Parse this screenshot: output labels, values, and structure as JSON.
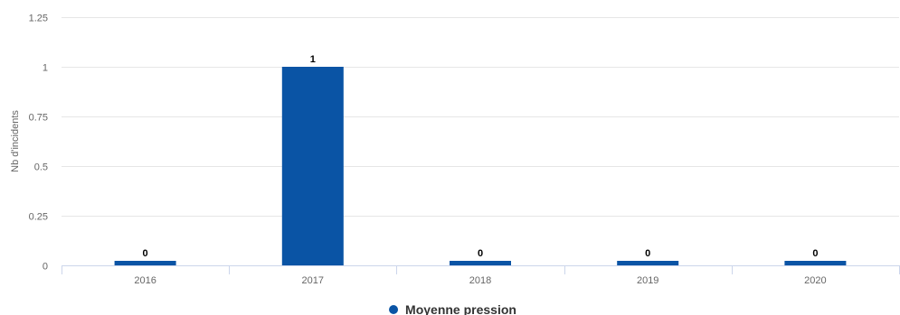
{
  "chart_data": {
    "type": "bar",
    "categories": [
      "2016",
      "2017",
      "2018",
      "2019",
      "2020"
    ],
    "series": [
      {
        "name": "Moyenne pression",
        "values": [
          0,
          1,
          0,
          0,
          0
        ],
        "color": "#0a54a5"
      }
    ],
    "xlabel": "",
    "ylabel": "Nb d'incidents",
    "ylim": [
      0,
      1.25
    ],
    "yticks": [
      "0",
      "0.25",
      "0.5",
      "0.75",
      "1",
      "1.25"
    ],
    "ytick_values": [
      0,
      0.25,
      0.5,
      0.75,
      1,
      1.25
    ],
    "grid": true,
    "legend_position": "bottom-center",
    "data_labels": [
      "0",
      "1",
      "0",
      "0",
      "0"
    ]
  }
}
